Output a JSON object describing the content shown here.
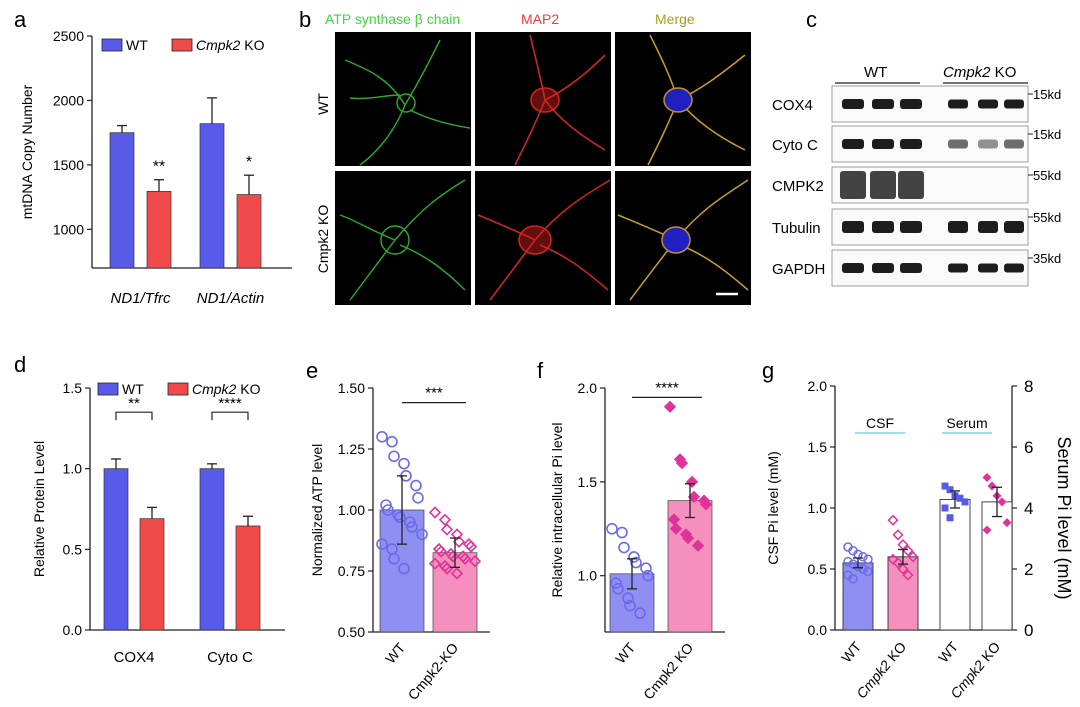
{
  "panel_labels": {
    "a": "a",
    "b": "b",
    "c": "c",
    "d": "d",
    "e": "e",
    "f": "f",
    "g": "g"
  },
  "colors": {
    "wt": "#5a5ae8",
    "ko": "#f04a4a",
    "wt_light": "#8f8ff2",
    "ko_light": "#f58fbd",
    "wt_dot": "#6b6bea",
    "ko_dot": "#e0339a",
    "green": "#3fd43f",
    "red": "#f03a3a",
    "olive": "#a8a020",
    "cyan": "#7fd6e8"
  },
  "chart_data": [
    {
      "id": "a",
      "type": "bar",
      "ylabel": "mtDNA Copy Number",
      "categories": [
        "ND1/Tfrc",
        "ND1/Actin"
      ],
      "ylim": [
        700,
        2500
      ],
      "yticks": [
        "2500",
        "2000",
        "1500",
        "1000"
      ],
      "ytick_values": [
        2500,
        2000,
        1500,
        1000
      ],
      "series": [
        {
          "name": "WT",
          "values": [
            1750,
            1820
          ],
          "err": [
            55,
            200
          ]
        },
        {
          "name": "Cmpk2 KO",
          "values": [
            1295,
            1270
          ],
          "err": [
            90,
            150
          ]
        }
      ],
      "significance": [
        "**",
        "*"
      ]
    },
    {
      "id": "d",
      "type": "bar",
      "ylabel": "Relative Protein Level",
      "categories": [
        "COX4",
        "Cyto C"
      ],
      "ylim": [
        0,
        1.5
      ],
      "yticks": [
        "0.0",
        "0.5",
        "1.0",
        "1.5"
      ],
      "ytick_values": [
        0,
        0.5,
        1.0,
        1.5
      ],
      "series": [
        {
          "name": "WT",
          "values": [
            1.0,
            1.0
          ],
          "err": [
            0.06,
            0.03
          ]
        },
        {
          "name": "Cmpk2 KO",
          "values": [
            0.69,
            0.645
          ],
          "err": [
            0.07,
            0.06
          ]
        }
      ],
      "significance": [
        "**",
        "****"
      ]
    },
    {
      "id": "e",
      "type": "bar",
      "ylabel": "Normalized ATP level",
      "categories": [
        "WT",
        "Cmpk2-KO"
      ],
      "ylim": [
        0.5,
        1.5
      ],
      "yticks": [
        "0.50",
        "0.75",
        "1.00",
        "1.25",
        "1.50"
      ],
      "ytick_values": [
        0.5,
        0.75,
        1.0,
        1.25,
        1.5
      ],
      "values": [
        1.0,
        0.825
      ],
      "err": [
        0.14,
        0.06
      ],
      "points": [
        [
          1.3,
          1.28,
          1.22,
          1.19,
          1.14,
          1.1,
          1.05,
          1.02,
          1.0,
          0.98,
          0.97,
          0.95,
          0.93,
          0.9,
          0.86,
          0.84,
          0.8,
          0.76
        ],
        [
          0.99,
          0.96,
          0.92,
          0.9,
          0.87,
          0.86,
          0.85,
          0.84,
          0.83,
          0.82,
          0.81,
          0.81,
          0.8,
          0.79,
          0.78,
          0.77,
          0.76,
          0.74
        ]
      ],
      "significance": "***"
    },
    {
      "id": "f",
      "type": "bar",
      "ylabel": "Relative intracellular Pi level",
      "categories": [
        "WT",
        "Cmpk2 KO"
      ],
      "ylim": [
        0.7,
        2.0
      ],
      "yticks": [
        "1.0",
        "1.5",
        "2.0"
      ],
      "ytick_values": [
        1.0,
        1.5,
        2.0
      ],
      "values": [
        1.01,
        1.4
      ],
      "err": [
        0.08,
        0.09
      ],
      "points": [
        [
          1.25,
          1.23,
          1.15,
          1.1,
          1.07,
          1.04,
          1.0,
          0.96,
          0.93,
          0.88,
          0.84,
          0.8
        ],
        [
          1.9,
          1.62,
          1.6,
          1.5,
          1.42,
          1.4,
          1.38,
          1.3,
          1.25,
          1.22,
          1.2,
          1.16
        ]
      ],
      "significance": "****"
    },
    {
      "id": "g",
      "type": "bar",
      "ylabel": "CSF Pi level (mM)",
      "ylabel_right": "Serum Pi level (mM)",
      "categories": [
        "WT",
        "Cmpk2 KO",
        "WT",
        "Cmpk2 KO"
      ],
      "group_labels": [
        "CSF",
        "Serum"
      ],
      "ylim": [
        0,
        2.0
      ],
      "yticks": [
        "0.0",
        "0.5",
        "1.0",
        "1.5",
        "2.0"
      ],
      "ytick_values": [
        0,
        0.5,
        1.0,
        1.5,
        2.0
      ],
      "ylim_right": [
        0,
        8
      ],
      "yticks_right": [
        "0",
        "2",
        "4",
        "6",
        "8"
      ],
      "ytick_values_right": [
        0,
        2,
        4,
        6,
        8
      ],
      "values": [
        0.55,
        0.6,
        1.07,
        1.05
      ],
      "err": [
        0.04,
        0.06,
        0.07,
        0.12
      ],
      "points": [
        [
          0.68,
          0.65,
          0.62,
          0.6,
          0.58,
          0.56,
          0.54,
          0.52,
          0.5,
          0.48,
          0.45,
          0.42
        ],
        [
          0.9,
          0.78,
          0.7,
          0.65,
          0.6,
          0.58,
          0.55,
          0.5,
          0.45
        ],
        [
          1.18,
          1.15,
          1.1,
          1.08,
          1.05,
          1.0,
          0.92
        ],
        [
          1.25,
          1.18,
          1.1,
          1.05,
          0.88,
          0.82
        ]
      ]
    }
  ],
  "panel_b": {
    "col_titles": [
      "ATP synthase β chain",
      "MAP2",
      "Merge"
    ],
    "row_labels": [
      "WT",
      "Cmpk2 KO"
    ]
  },
  "panel_c": {
    "group_labels": [
      "WT",
      "Cmpk2",
      " KO"
    ],
    "rows": [
      {
        "label": "COX4",
        "marker": "15kd"
      },
      {
        "label": "Cyto C",
        "marker": "15kd"
      },
      {
        "label": "CMPK2",
        "marker": "55kd"
      },
      {
        "label": "Tubulin",
        "marker": "55kd"
      },
      {
        "label": "GAPDH",
        "marker": "35kd"
      }
    ]
  }
}
